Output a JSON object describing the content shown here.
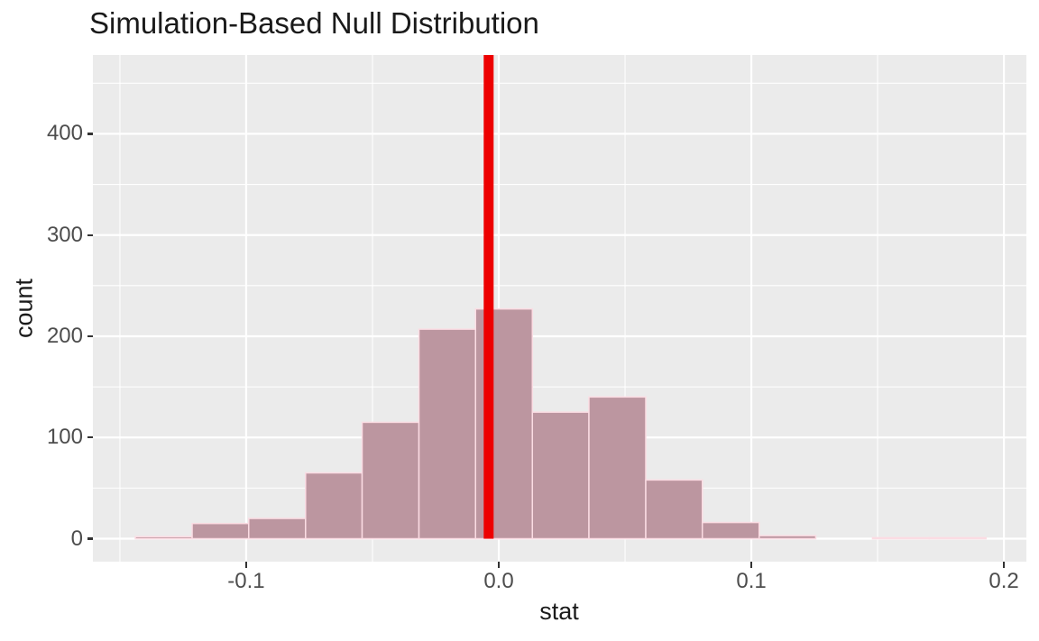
{
  "figure": {
    "title": "Simulation-Based Null Distribution"
  },
  "chart_data": {
    "type": "bar",
    "subtype": "histogram-null-distribution",
    "title": "Simulation-Based Null Distribution",
    "xlabel": "stat",
    "ylabel": "count",
    "bin_edges": [
      -0.1439,
      -0.1214,
      -0.099,
      -0.0765,
      -0.0541,
      -0.0316,
      -0.0092,
      0.0133,
      0.0357,
      0.0582,
      0.0806,
      0.1031,
      0.1255,
      0.148,
      0.1704,
      0.1929
    ],
    "counts": [
      2,
      15,
      20,
      65,
      115,
      207,
      227,
      125,
      140,
      58,
      16,
      3,
      0,
      1,
      1
    ],
    "observed_stat": -0.004,
    "xlim": [
      -0.1607,
      0.2089
    ],
    "ylim": [
      -22.7,
      477.9
    ],
    "x_tick_values": [
      -0.1,
      0.0,
      0.1,
      0.2
    ],
    "x_tick_labels": [
      "-0.1",
      "0.0",
      "0.1",
      "0.2"
    ],
    "x_minor_ticks": [
      -0.15,
      -0.05,
      0.05,
      0.15
    ],
    "y_tick_values": [
      0,
      100,
      200,
      300,
      400
    ],
    "y_tick_labels": [
      "0",
      "100",
      "200",
      "300",
      "400"
    ],
    "y_minor_ticks": [
      50,
      150,
      250,
      350,
      450
    ],
    "grid": "major-and-minor-white-on-grey",
    "legend": "none"
  },
  "colors": {
    "background": "#FFFFFF",
    "panel_background": "#EBEBEB",
    "gridline": "#FFFFFF",
    "bar_fill": "#BC96A0",
    "bar_stroke": "#FBDCE3",
    "observed_line": "#ED0000",
    "tick_mark": "#333333",
    "tick_label": "#4D4D4D",
    "axis_title": "#1A1A1A",
    "plot_title": "#1A1A1A"
  }
}
